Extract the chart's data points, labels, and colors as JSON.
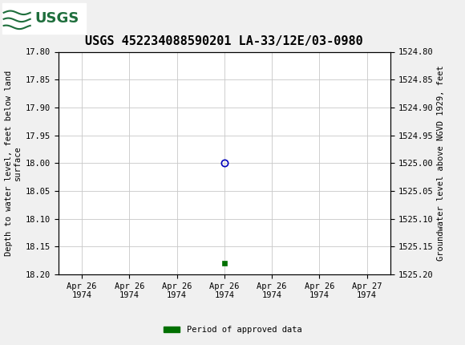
{
  "title": "USGS 452234088590201 LA-33/12E/03-0980",
  "ylabel_left": "Depth to water level, feet below land\nsurface",
  "ylabel_right": "Groundwater level above NGVD 1929, feet",
  "ylim_left": [
    17.8,
    18.2
  ],
  "ylim_right": [
    1524.8,
    1525.2
  ],
  "y_ticks_left": [
    17.8,
    17.85,
    17.9,
    17.95,
    18.0,
    18.05,
    18.1,
    18.15,
    18.2
  ],
  "y_ticks_right": [
    1524.8,
    1524.85,
    1524.9,
    1524.95,
    1525.0,
    1525.05,
    1525.1,
    1525.15,
    1525.2
  ],
  "x_tick_labels": [
    "Apr 26\n1974",
    "Apr 26\n1974",
    "Apr 26\n1974",
    "Apr 26\n1974",
    "Apr 26\n1974",
    "Apr 26\n1974",
    "Apr 27\n1974"
  ],
  "x_positions": [
    0,
    1,
    2,
    3,
    4,
    5,
    6
  ],
  "circle_point_x": 3,
  "circle_point_y": 18.0,
  "square_point_x": 3,
  "square_point_y": 18.18,
  "circle_color": "#0000bb",
  "square_color": "#007000",
  "grid_color": "#c8c8c8",
  "background_color": "#f0f0f0",
  "plot_bg_color": "#ffffff",
  "header_bg_color": "#1e6e3c",
  "title_fontsize": 11,
  "axis_label_fontsize": 7.5,
  "tick_fontsize": 7.5,
  "legend_label": "Period of approved data",
  "legend_color": "#007000",
  "x_lim": [
    -0.5,
    6.5
  ]
}
